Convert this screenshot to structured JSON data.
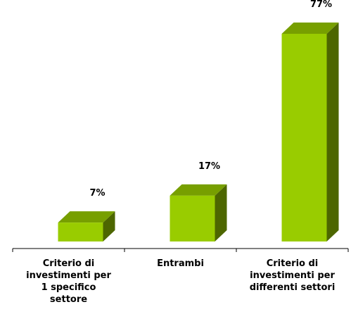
{
  "chart_data": {
    "type": "bar3d",
    "categories": [
      "Criterio di\ninvestimenti per\n1 specifico\nsettore",
      "Entrambi",
      "Criterio di\ninvestimenti per\ndifferenti settori"
    ],
    "values": [
      7,
      17,
      77
    ],
    "value_labels": [
      "7%",
      "17%",
      "77%"
    ],
    "color": "#99cc00"
  }
}
